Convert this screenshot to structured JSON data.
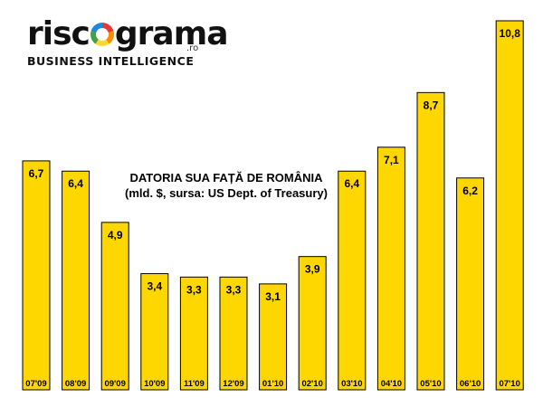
{
  "logo": {
    "word_left": "risc",
    "word_right": "grama",
    "suffix": ".ro",
    "tagline": "BUSINESS INTELLIGENCE"
  },
  "chart_data": {
    "type": "bar",
    "title": "DATORIA SUA FAȚĂ DE ROMÂNIA",
    "subtitle": "(mld. $, sursa: US Dept. of Treasury)",
    "categories": [
      "07'09",
      "08'09",
      "09'09",
      "10'09",
      "11'09",
      "12'09",
      "01'10",
      "02'10",
      "03'10",
      "04'10",
      "05'10",
      "06'10",
      "07'10"
    ],
    "values": [
      6.7,
      6.4,
      4.9,
      3.4,
      3.3,
      3.3,
      3.1,
      3.9,
      6.4,
      7.1,
      8.7,
      6.2,
      10.8
    ],
    "value_labels": [
      "6,7",
      "6,4",
      "4,9",
      "3,4",
      "3,3",
      "3,3",
      "3,1",
      "3,9",
      "6,4",
      "7,1",
      "8,7",
      "6,2",
      "10,8"
    ],
    "ylim": [
      0,
      10.8
    ],
    "bar_color": "#ffd700",
    "grid": false,
    "legend": "none"
  }
}
